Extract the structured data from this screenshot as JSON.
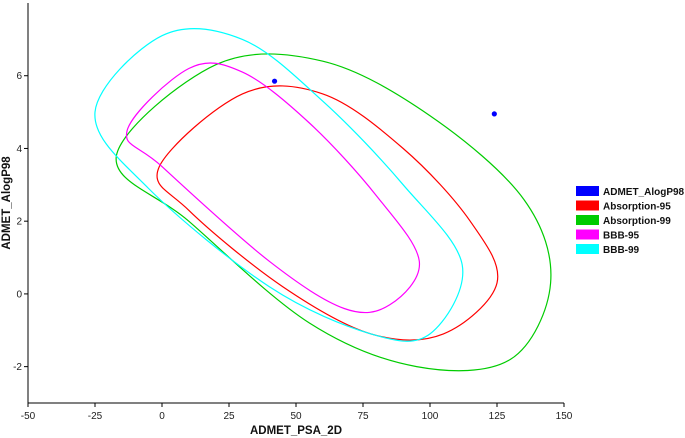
{
  "chart_data": {
    "type": "scatter",
    "title": "",
    "xlabel": "ADMET_PSA_2D",
    "ylabel": "ADMET_AlogP98",
    "xlim": [
      -50,
      150
    ],
    "ylim": [
      -3,
      8
    ],
    "x_ticks": [
      -50,
      -25,
      0,
      25,
      50,
      75,
      100,
      125,
      150
    ],
    "y_ticks": [
      -2,
      0,
      2,
      4,
      6
    ],
    "grid": false,
    "legend_position": "right",
    "points": {
      "name": "ADMET_AlogP98",
      "color": "#0000ff",
      "x": [
        42,
        124
      ],
      "y": [
        5.85,
        4.95
      ]
    },
    "ellipses": [
      {
        "name": "Absorption-95",
        "color": "#ff0000",
        "outline": [
          [
            -1,
            3.5
          ],
          [
            30,
            5.5
          ],
          [
            60,
            5.5
          ],
          [
            90,
            4.0
          ],
          [
            115,
            2.0
          ],
          [
            125,
            0.3
          ],
          [
            105,
            -1.1
          ],
          [
            78,
            -1.1
          ],
          [
            45,
            0.2
          ],
          [
            10,
            2.3
          ]
        ]
      },
      {
        "name": "Absorption-99",
        "color": "#00cc00",
        "outline": [
          [
            -17,
            3.8
          ],
          [
            20,
            6.3
          ],
          [
            60,
            6.4
          ],
          [
            100,
            4.9
          ],
          [
            135,
            2.6
          ],
          [
            145,
            0.3
          ],
          [
            130,
            -1.8
          ],
          [
            95,
            -2.0
          ],
          [
            55,
            -0.8
          ],
          [
            10,
            2.0
          ]
        ]
      },
      {
        "name": "BBB-95",
        "color": "#ff00ff",
        "outline": [
          [
            -13,
            4.5
          ],
          [
            10,
            6.2
          ],
          [
            30,
            6.1
          ],
          [
            55,
            4.7
          ],
          [
            80,
            2.7
          ],
          [
            96,
            0.9
          ],
          [
            85,
            -0.3
          ],
          [
            68,
            -0.4
          ],
          [
            40,
            0.9
          ],
          [
            0,
            3.5
          ]
        ]
      },
      {
        "name": "BBB-99",
        "color": "#00ffff",
        "outline": [
          [
            -25,
            5.0
          ],
          [
            0,
            7.1
          ],
          [
            30,
            7.0
          ],
          [
            60,
            5.3
          ],
          [
            90,
            3.0
          ],
          [
            112,
            0.8
          ],
          [
            100,
            -1.1
          ],
          [
            78,
            -1.1
          ],
          [
            40,
            0.2
          ],
          [
            -5,
            2.9
          ]
        ]
      }
    ],
    "legend": [
      {
        "label": "ADMET_AlogP98",
        "color": "#0000ff"
      },
      {
        "label": "Absorption-95",
        "color": "#ff0000"
      },
      {
        "label": "Absorption-99",
        "color": "#00cc00"
      },
      {
        "label": "BBB-95",
        "color": "#ff00ff"
      },
      {
        "label": "BBB-99",
        "color": "#00ffff"
      }
    ]
  }
}
